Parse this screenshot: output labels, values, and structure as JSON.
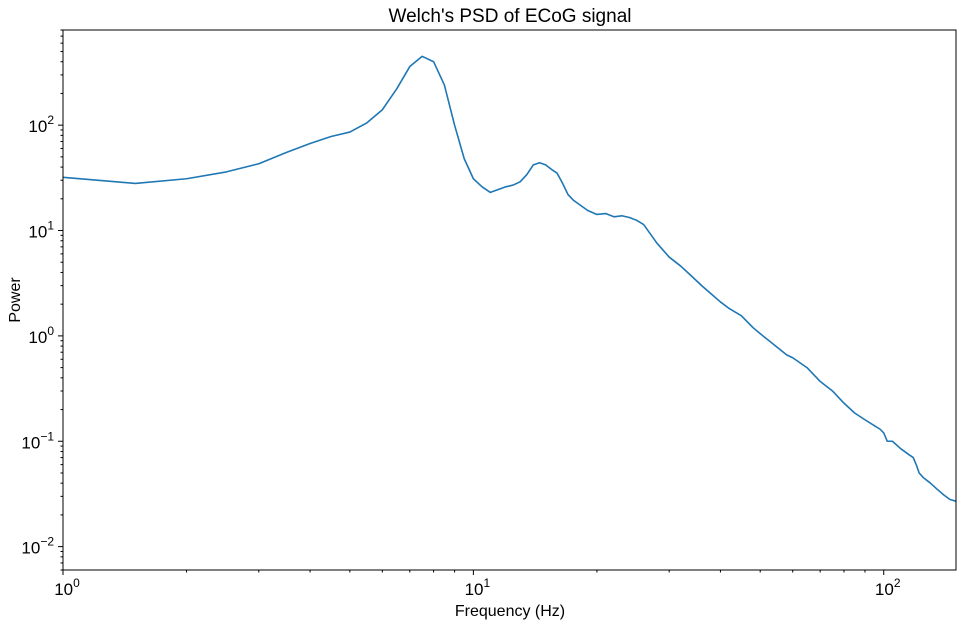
{
  "chart_data": {
    "type": "line",
    "title": "Welch's PSD of ECoG signal",
    "xlabel": "Frequency (Hz)",
    "ylabel": "Power",
    "xscale": "log",
    "yscale": "log",
    "xlim": [
      1,
      150
    ],
    "ylim": [
      0.006,
      800
    ],
    "grid": false,
    "legend": "none",
    "line_color": "#1f77b4",
    "x_ticks": [
      {
        "value": 1,
        "base": "10",
        "exp": "0"
      },
      {
        "value": 10,
        "base": "10",
        "exp": "1"
      },
      {
        "value": 100,
        "base": "10",
        "exp": "2"
      }
    ],
    "y_ticks": [
      {
        "value": 0.01,
        "base": "10",
        "exp": "−2"
      },
      {
        "value": 0.1,
        "base": "10",
        "exp": "−1"
      },
      {
        "value": 1,
        "base": "10",
        "exp": "0"
      },
      {
        "value": 10,
        "base": "10",
        "exp": "1"
      },
      {
        "value": 100,
        "base": "10",
        "exp": "2"
      }
    ],
    "series": [
      {
        "x": [
          1,
          1.5,
          2,
          2.5,
          3,
          3.5,
          4,
          4.5,
          5,
          5.5,
          6,
          6.5,
          7,
          7.5,
          8,
          8.5,
          9,
          9.5,
          10,
          10.5,
          11,
          11.5,
          12,
          12.5,
          13,
          13.5,
          14,
          14.5,
          15,
          15.5,
          16,
          16.5,
          17,
          17.5,
          18,
          19,
          20,
          21,
          22,
          23,
          24,
          25,
          26,
          28,
          30,
          32,
          34,
          36,
          38,
          40,
          42,
          45,
          48,
          50,
          55,
          58,
          60,
          65,
          70,
          75,
          80,
          85,
          90,
          95,
          98,
          100,
          102,
          105,
          110,
          115,
          118,
          120,
          122,
          125,
          130,
          135,
          140,
          145,
          150
        ],
        "y": [
          32,
          28,
          31,
          36,
          43,
          55,
          67,
          78,
          86,
          105,
          140,
          220,
          360,
          450,
          400,
          240,
          100,
          48,
          31,
          26,
          23,
          24.5,
          26,
          27,
          29,
          34,
          42,
          44,
          42,
          38,
          35,
          28,
          22,
          19.5,
          18,
          15.5,
          14.2,
          14.5,
          13.5,
          13.8,
          13.3,
          12.5,
          11.4,
          7.6,
          5.6,
          4.6,
          3.7,
          3.0,
          2.5,
          2.1,
          1.82,
          1.55,
          1.2,
          1.05,
          0.78,
          0.66,
          0.62,
          0.5,
          0.37,
          0.3,
          0.23,
          0.185,
          0.16,
          0.14,
          0.13,
          0.12,
          0.1,
          0.1,
          0.085,
          0.075,
          0.07,
          0.06,
          0.05,
          0.045,
          0.04,
          0.035,
          0.031,
          0.028,
          0.027
        ]
      }
    ]
  }
}
